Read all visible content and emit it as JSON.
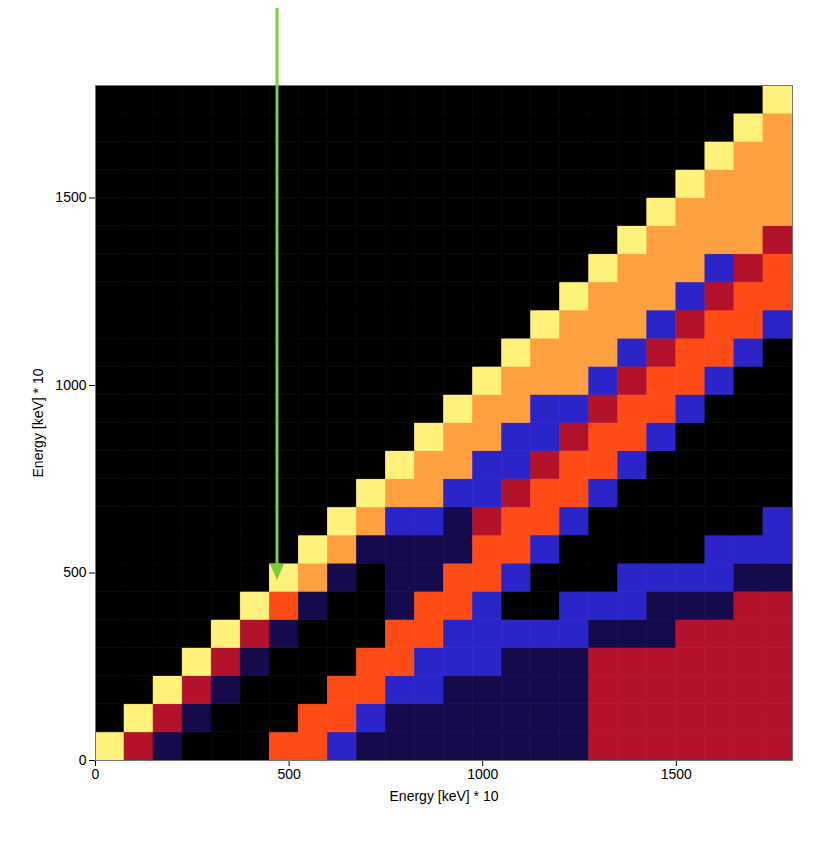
{
  "chart_data": {
    "type": "heatmap",
    "xlabel": "Energy [keV] * 10",
    "ylabel": "Energy [keV] * 10",
    "xlim": [
      0,
      1800
    ],
    "ylim": [
      0,
      1800
    ],
    "xticks": [
      0,
      500,
      1000,
      1500
    ],
    "yticks": [
      0,
      500,
      1000,
      1500
    ],
    "xbins": [
      0,
      75,
      150,
      225,
      300,
      375,
      450,
      525,
      600,
      675,
      750,
      825,
      900,
      975,
      1050,
      1125,
      1200,
      1275,
      1350,
      1425,
      1500,
      1575,
      1650,
      1725,
      1800
    ],
    "ybins": [
      0,
      75,
      150,
      225,
      300,
      375,
      450,
      525,
      600,
      675,
      750,
      825,
      900,
      975,
      1050,
      1125,
      1200,
      1275,
      1350,
      1425,
      1500,
      1575,
      1650,
      1725,
      1800
    ],
    "z": [
      [
        6,
        3,
        1,
        0,
        0,
        0,
        4,
        4,
        2,
        1,
        1,
        1,
        1,
        1,
        1,
        1,
        1,
        3,
        3,
        3,
        3,
        3,
        3,
        3
      ],
      [
        0,
        6,
        3,
        1,
        0,
        0,
        0,
        4,
        4,
        2,
        1,
        1,
        1,
        1,
        1,
        1,
        1,
        3,
        3,
        3,
        3,
        3,
        3,
        3
      ],
      [
        0,
        0,
        6,
        3,
        1,
        0,
        0,
        0,
        4,
        4,
        2,
        2,
        1,
        1,
        1,
        1,
        1,
        3,
        3,
        3,
        3,
        3,
        3,
        3
      ],
      [
        0,
        0,
        0,
        6,
        3,
        1,
        0,
        0,
        0,
        4,
        4,
        2,
        2,
        2,
        1,
        1,
        1,
        3,
        3,
        3,
        3,
        3,
        3,
        3
      ],
      [
        0,
        0,
        0,
        0,
        6,
        3,
        1,
        0,
        0,
        0,
        4,
        4,
        2,
        2,
        2,
        2,
        2,
        1,
        1,
        1,
        3,
        3,
        3,
        3
      ],
      [
        0,
        0,
        0,
        0,
        0,
        6,
        4,
        1,
        0,
        0,
        1,
        4,
        4,
        2,
        0,
        0,
        2,
        2,
        2,
        1,
        1,
        1,
        3,
        3
      ],
      [
        0,
        0,
        0,
        0,
        0,
        0,
        6,
        5,
        1,
        0,
        1,
        1,
        4,
        4,
        2,
        0,
        0,
        0,
        2,
        2,
        2,
        2,
        1,
        1
      ],
      [
        0,
        0,
        0,
        0,
        0,
        0,
        0,
        6,
        5,
        1,
        1,
        1,
        1,
        4,
        4,
        2,
        0,
        0,
        0,
        0,
        0,
        2,
        2,
        2
      ],
      [
        0,
        0,
        0,
        0,
        0,
        0,
        0,
        0,
        6,
        5,
        2,
        2,
        1,
        3,
        4,
        4,
        2,
        0,
        0,
        0,
        0,
        0,
        0,
        2
      ],
      [
        0,
        0,
        0,
        0,
        0,
        0,
        0,
        0,
        0,
        6,
        5,
        5,
        2,
        2,
        3,
        4,
        4,
        2,
        0,
        0,
        0,
        0,
        0,
        0
      ],
      [
        0,
        0,
        0,
        0,
        0,
        0,
        0,
        0,
        0,
        0,
        6,
        5,
        5,
        2,
        2,
        3,
        4,
        4,
        2,
        0,
        0,
        0,
        0,
        0
      ],
      [
        0,
        0,
        0,
        0,
        0,
        0,
        0,
        0,
        0,
        0,
        0,
        6,
        5,
        5,
        2,
        2,
        3,
        4,
        4,
        2,
        0,
        0,
        0,
        0
      ],
      [
        0,
        0,
        0,
        0,
        0,
        0,
        0,
        0,
        0,
        0,
        0,
        0,
        6,
        5,
        5,
        2,
        2,
        3,
        4,
        4,
        2,
        0,
        0,
        0
      ],
      [
        0,
        0,
        0,
        0,
        0,
        0,
        0,
        0,
        0,
        0,
        0,
        0,
        0,
        6,
        5,
        5,
        5,
        2,
        3,
        4,
        4,
        2,
        0,
        0
      ],
      [
        0,
        0,
        0,
        0,
        0,
        0,
        0,
        0,
        0,
        0,
        0,
        0,
        0,
        0,
        6,
        5,
        5,
        5,
        2,
        3,
        4,
        4,
        2,
        0
      ],
      [
        0,
        0,
        0,
        0,
        0,
        0,
        0,
        0,
        0,
        0,
        0,
        0,
        0,
        0,
        0,
        6,
        5,
        5,
        5,
        2,
        3,
        4,
        4,
        2
      ],
      [
        0,
        0,
        0,
        0,
        0,
        0,
        0,
        0,
        0,
        0,
        0,
        0,
        0,
        0,
        0,
        0,
        6,
        5,
        5,
        5,
        2,
        3,
        4,
        4
      ],
      [
        0,
        0,
        0,
        0,
        0,
        0,
        0,
        0,
        0,
        0,
        0,
        0,
        0,
        0,
        0,
        0,
        0,
        6,
        5,
        5,
        5,
        2,
        3,
        4
      ],
      [
        0,
        0,
        0,
        0,
        0,
        0,
        0,
        0,
        0,
        0,
        0,
        0,
        0,
        0,
        0,
        0,
        0,
        0,
        6,
        5,
        5,
        5,
        5,
        3
      ],
      [
        0,
        0,
        0,
        0,
        0,
        0,
        0,
        0,
        0,
        0,
        0,
        0,
        0,
        0,
        0,
        0,
        0,
        0,
        0,
        6,
        5,
        5,
        5,
        5
      ],
      [
        0,
        0,
        0,
        0,
        0,
        0,
        0,
        0,
        0,
        0,
        0,
        0,
        0,
        0,
        0,
        0,
        0,
        0,
        0,
        0,
        6,
        5,
        5,
        5
      ],
      [
        0,
        0,
        0,
        0,
        0,
        0,
        0,
        0,
        0,
        0,
        0,
        0,
        0,
        0,
        0,
        0,
        0,
        0,
        0,
        0,
        0,
        6,
        5,
        5
      ],
      [
        0,
        0,
        0,
        0,
        0,
        0,
        0,
        0,
        0,
        0,
        0,
        0,
        0,
        0,
        0,
        0,
        0,
        0,
        0,
        0,
        0,
        0,
        6,
        5
      ],
      [
        0,
        0,
        0,
        0,
        0,
        0,
        0,
        0,
        0,
        0,
        0,
        0,
        0,
        0,
        0,
        0,
        0,
        0,
        0,
        0,
        0,
        0,
        0,
        6
      ]
    ],
    "annotations": [
      {
        "type": "arrow",
        "x": 470,
        "y": 480,
        "color": "#7fcc3a"
      }
    ]
  }
}
